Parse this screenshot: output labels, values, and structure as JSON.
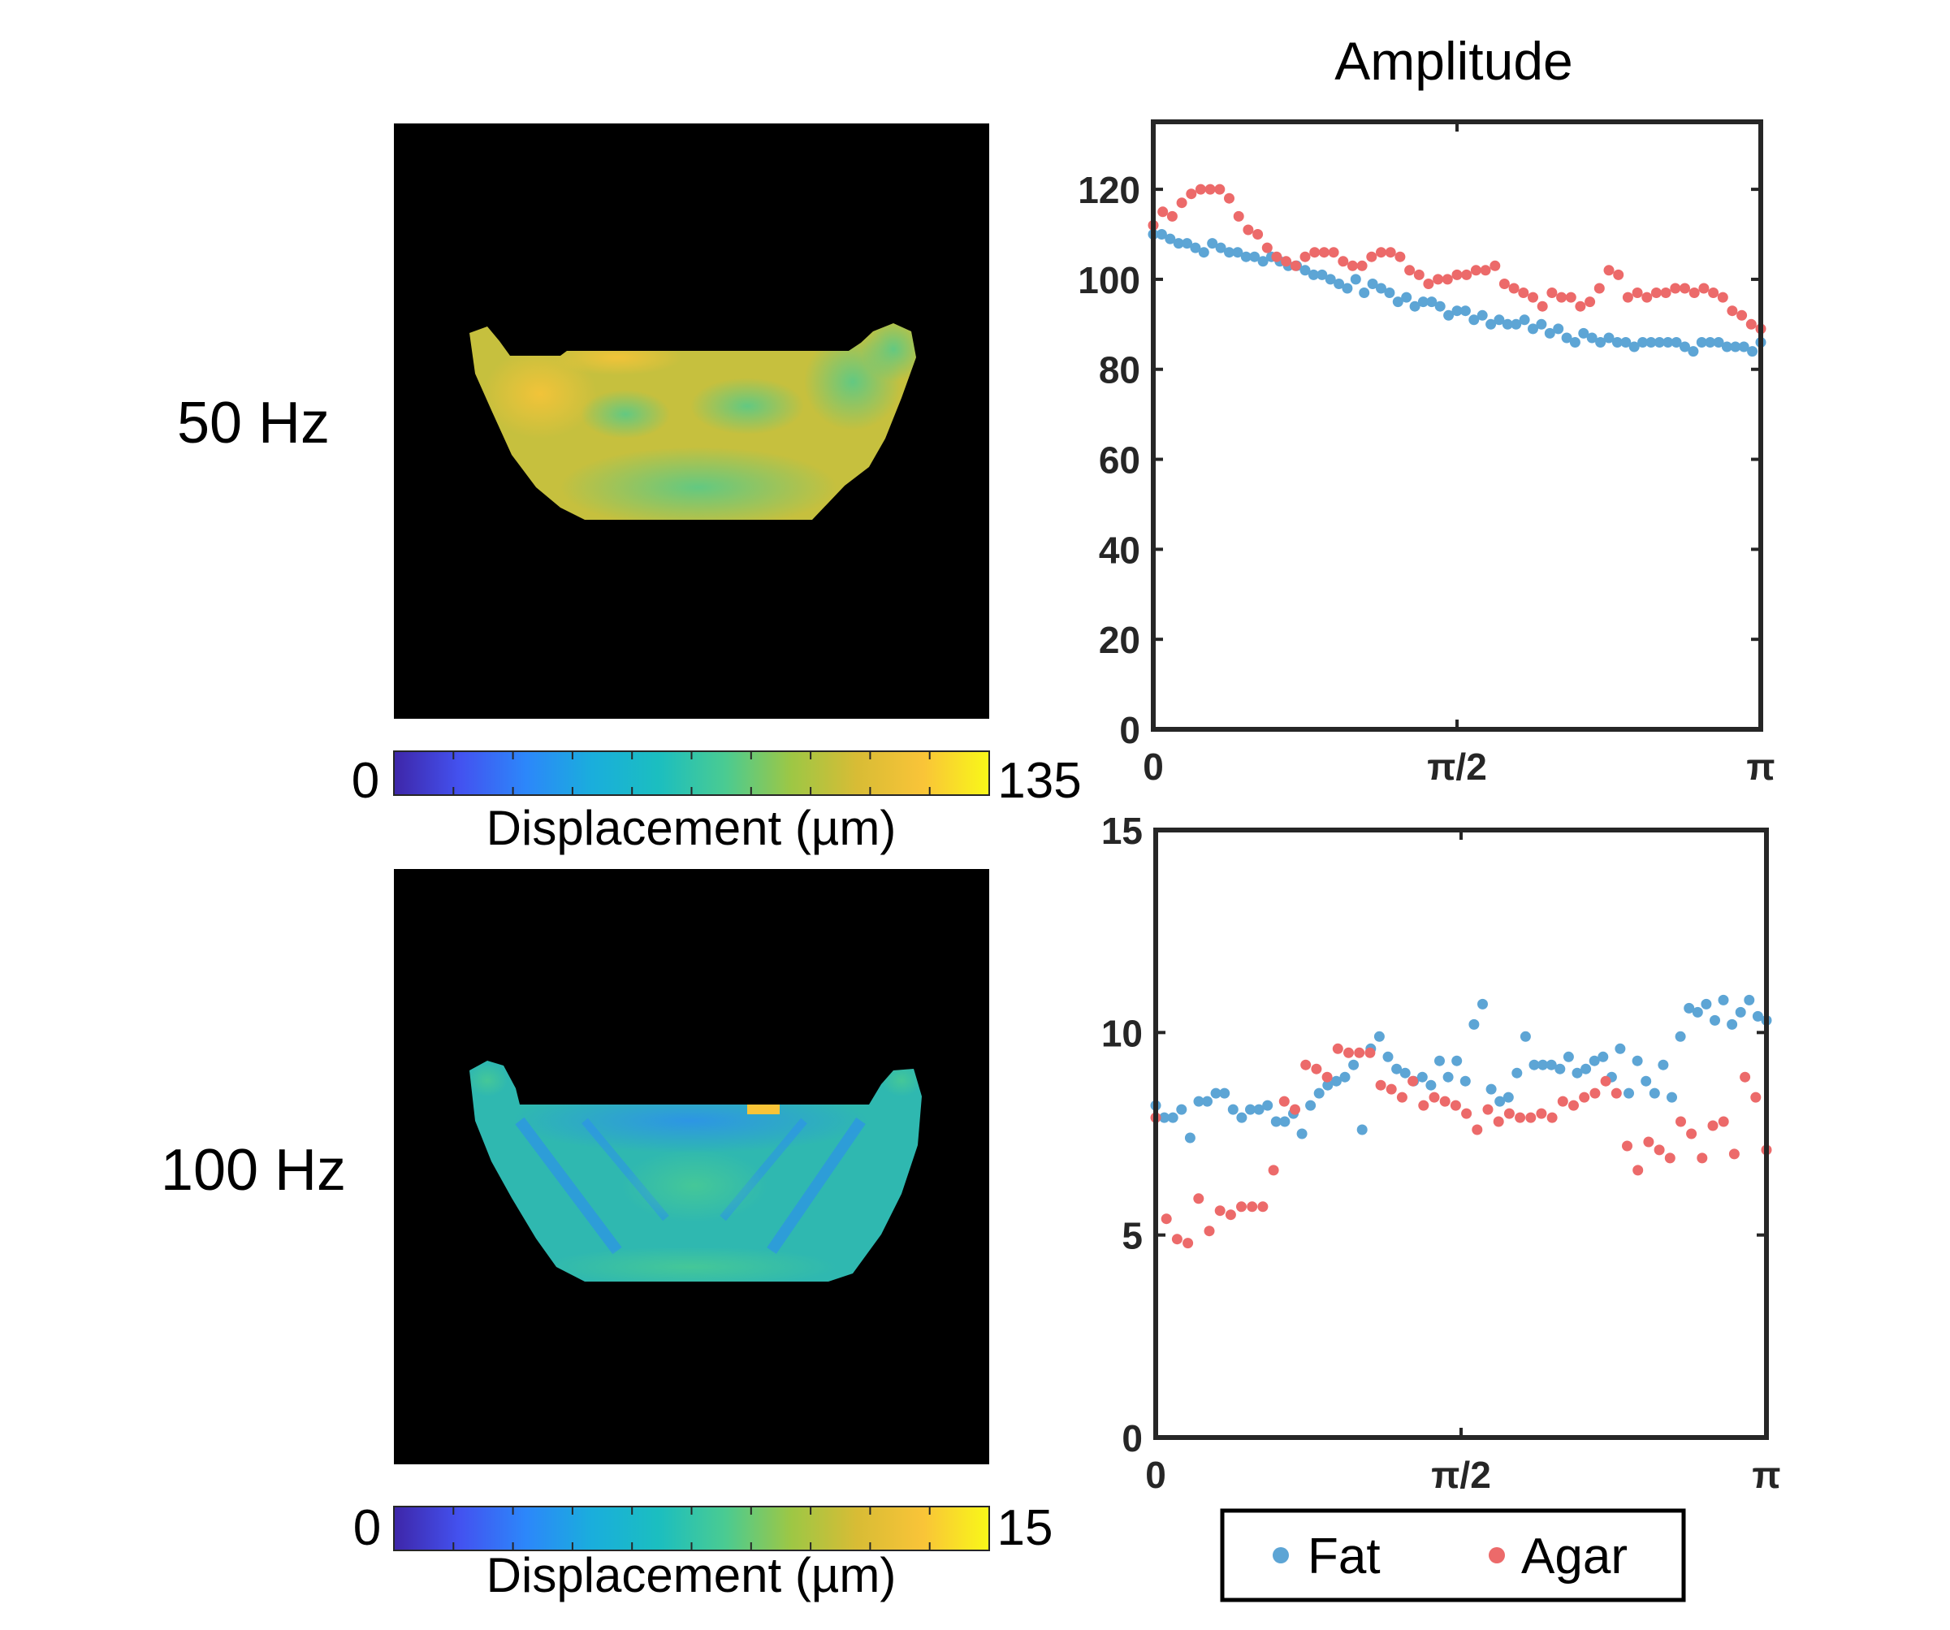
{
  "figure": {
    "title": "Amplitude",
    "row_labels": [
      "50 Hz",
      "100 Hz"
    ]
  },
  "colors": {
    "fat": "#5DA5D5",
    "agar": "#EC6A6A",
    "axis": "#262626",
    "image_bg": "#000000"
  },
  "colorbars": [
    {
      "min_label": "0",
      "max_label": "135",
      "label": "Displacement (µm)",
      "stops": [
        "#3E26A8",
        "#4352F0",
        "#2C87FA",
        "#1AAEDC",
        "#1BBEC0",
        "#4ACB92",
        "#9DC745",
        "#D8BC35",
        "#F9C438",
        "#F9F818"
      ]
    },
    {
      "min_label": "0",
      "max_label": "15",
      "label": "Displacement (µm)",
      "stops": [
        "#3E26A8",
        "#4352F0",
        "#2C87FA",
        "#1AAEDC",
        "#1BBEC0",
        "#4ACB92",
        "#9DC745",
        "#D8BC35",
        "#F9C438",
        "#F9F818"
      ]
    }
  ],
  "legend": {
    "fat": "Fat",
    "agar": "Agar"
  },
  "chart_data": [
    {
      "type": "scatter",
      "title": "Amplitude",
      "xlim": [
        0,
        3.14159
      ],
      "ylim": [
        0,
        135
      ],
      "xticks": [
        {
          "v": 0,
          "label": "0"
        },
        {
          "v": 1.5708,
          "label": "π/2"
        },
        {
          "v": 3.14159,
          "label": "π"
        }
      ],
      "yticks": [
        {
          "v": 0,
          "label": "0"
        },
        {
          "v": 20,
          "label": "20"
        },
        {
          "v": 40,
          "label": "40"
        },
        {
          "v": 60,
          "label": "60"
        },
        {
          "v": 80,
          "label": "80"
        },
        {
          "v": 100,
          "label": "100"
        },
        {
          "v": 120,
          "label": "120"
        }
      ],
      "series": [
        {
          "name": "Fat",
          "color": "#5DA5D5",
          "y": [
            110,
            110,
            109,
            108,
            108,
            107,
            106,
            108,
            107,
            106,
            106,
            105,
            105,
            104,
            105,
            104,
            103,
            103,
            102,
            101,
            101,
            100,
            99,
            98,
            100,
            97,
            99,
            98,
            97,
            95,
            96,
            94,
            95,
            95,
            94,
            92,
            93,
            93,
            91,
            92,
            90,
            91,
            90,
            90,
            91,
            89,
            90,
            88,
            89,
            87,
            86,
            88,
            87,
            86,
            87,
            86,
            86,
            85,
            86,
            86,
            86,
            86,
            86,
            85,
            84,
            86,
            86,
            86,
            85,
            85,
            85,
            84,
            86
          ]
        },
        {
          "name": "Agar",
          "color": "#EC6A6A",
          "y": [
            112,
            115,
            114,
            117,
            119,
            120,
            120,
            120,
            118,
            114,
            111,
            110,
            107,
            105,
            104,
            103,
            105,
            106,
            106,
            106,
            104,
            103,
            103,
            105,
            106,
            106,
            105,
            102,
            101,
            99,
            100,
            100,
            101,
            101,
            102,
            102,
            103,
            99,
            98,
            97,
            96,
            94,
            97,
            96,
            96,
            94,
            95,
            98,
            102,
            101,
            96,
            97,
            96,
            97,
            97,
            98,
            98,
            97,
            98,
            97,
            96,
            93,
            92,
            90,
            89
          ]
        }
      ]
    },
    {
      "type": "scatter",
      "title": "",
      "xlim": [
        0,
        3.14159
      ],
      "ylim": [
        0,
        15
      ],
      "xticks": [
        {
          "v": 0,
          "label": "0"
        },
        {
          "v": 1.5708,
          "label": "π/2"
        },
        {
          "v": 3.14159,
          "label": "π"
        }
      ],
      "yticks": [
        {
          "v": 0,
          "label": "0"
        },
        {
          "v": 5,
          "label": "5"
        },
        {
          "v": 10,
          "label": "10"
        },
        {
          "v": 15,
          "label": "15"
        }
      ],
      "series": [
        {
          "name": "Fat",
          "color": "#5DA5D5",
          "y": [
            8.2,
            7.9,
            7.9,
            8.1,
            7.4,
            8.3,
            8.3,
            8.5,
            8.5,
            8.1,
            7.9,
            8.1,
            8.1,
            8.2,
            7.8,
            7.8,
            8.0,
            7.5,
            8.2,
            8.5,
            8.7,
            8.8,
            8.9,
            9.2,
            7.6,
            9.6,
            9.9,
            9.4,
            9.1,
            9.0,
            8.8,
            8.9,
            8.7,
            9.3,
            8.9,
            9.3,
            8.8,
            10.2,
            10.7,
            8.6,
            8.3,
            8.4,
            9.0,
            9.9,
            9.2,
            9.2,
            9.2,
            9.1,
            9.4,
            9.0,
            9.1,
            9.3,
            9.4,
            8.9,
            9.6,
            8.5,
            9.3,
            8.8,
            8.5,
            9.2,
            8.4,
            9.9,
            10.6,
            10.5,
            10.7,
            10.3,
            10.8,
            10.2,
            10.5,
            10.8,
            10.4,
            10.3
          ]
        },
        {
          "name": "Agar",
          "color": "#EC6A6A",
          "y": [
            7.9,
            5.4,
            4.9,
            4.8,
            5.9,
            5.1,
            5.6,
            5.5,
            5.7,
            5.7,
            5.7,
            6.6,
            8.3,
            8.1,
            9.2,
            9.1,
            8.9,
            9.6,
            9.5,
            9.5,
            9.5,
            8.7,
            8.6,
            8.4,
            8.8,
            8.2,
            8.4,
            8.3,
            8.2,
            8.0,
            7.6,
            8.1,
            7.8,
            8.0,
            7.9,
            7.9,
            8.0,
            7.9,
            8.3,
            8.2,
            8.4,
            8.5,
            8.8,
            8.5,
            7.2,
            6.6,
            7.3,
            7.1,
            6.9,
            7.8,
            7.5,
            6.9,
            7.7,
            7.8,
            7.0,
            8.9,
            8.4,
            7.1
          ]
        }
      ]
    }
  ]
}
